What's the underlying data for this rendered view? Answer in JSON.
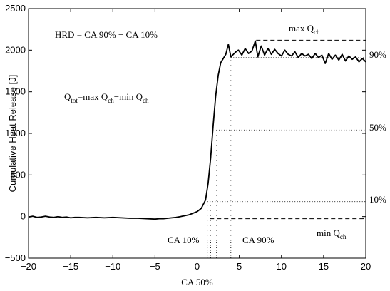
{
  "chart_data": {
    "type": "line",
    "title": "",
    "xlabel": "CA 50%",
    "ylabel": "Cumulative Heat Release [J]",
    "xlim": [
      -20,
      20
    ],
    "ylim": [
      -500,
      2500
    ],
    "grid": false,
    "legend": "none",
    "xticks": [
      -20,
      -15,
      -10,
      -5,
      0,
      5,
      10,
      15,
      20
    ],
    "xtick_labels": [
      "−20",
      "−15",
      "−10",
      "−5",
      "0",
      "5",
      "10",
      "15",
      "20"
    ],
    "yticks": [
      -500,
      0,
      500,
      1000,
      1500,
      2000,
      2500
    ],
    "ytick_labels": [
      "−500",
      "0",
      "500",
      "1000",
      "1500",
      "2000",
      "2500"
    ],
    "series": [
      {
        "x": [
          -20,
          -19.5,
          -19,
          -18.5,
          -18,
          -17.5,
          -17,
          -16.5,
          -16,
          -15.5,
          -15,
          -14.5,
          -14,
          -13,
          -12,
          -11,
          -10,
          -9,
          -8,
          -7,
          -6,
          -5,
          -4.5,
          -4,
          -3.5,
          -3,
          -2.5,
          -2,
          -1.5,
          -1,
          -0.5,
          0,
          0.5,
          1,
          1.3,
          1.6,
          1.9,
          2.2,
          2.5,
          2.8,
          3.1,
          3.4,
          3.7,
          4.0,
          4.3,
          4.6,
          4.9,
          5.3,
          5.7,
          6.1,
          6.5,
          6.9,
          7.2,
          7.6,
          8.0,
          8.4,
          8.8,
          9.2,
          9.6,
          10.0,
          10.4,
          10.8,
          11.2,
          11.6,
          12.0,
          12.4,
          12.8,
          13.2,
          13.6,
          14.0,
          14.4,
          14.8,
          15.2,
          15.6,
          16.0,
          16.4,
          16.8,
          17.2,
          17.6,
          18.0,
          18.4,
          18.8,
          19.2,
          19.6,
          20.0
        ],
        "y": [
          -5,
          5,
          -10,
          -5,
          5,
          -5,
          -10,
          0,
          -10,
          -5,
          -15,
          -10,
          -10,
          -15,
          -10,
          -15,
          -10,
          -15,
          -20,
          -20,
          -25,
          -30,
          -25,
          -25,
          -20,
          -15,
          -10,
          0,
          10,
          20,
          40,
          60,
          100,
          200,
          400,
          700,
          1100,
          1450,
          1700,
          1850,
          1900,
          1950,
          2070,
          1920,
          1950,
          1980,
          2000,
          1940,
          2020,
          1960,
          1990,
          2110,
          1920,
          2050,
          1940,
          2020,
          1950,
          2010,
          1960,
          1930,
          2000,
          1950,
          1930,
          1980,
          1910,
          1960,
          1930,
          1950,
          1900,
          1960,
          1910,
          1940,
          1840,
          1960,
          1890,
          1940,
          1880,
          1950,
          1870,
          1930,
          1890,
          1920,
          1860,
          1900,
          1860
        ]
      }
    ],
    "reference_lines": [
      {
        "kind": "hline",
        "y": 2120,
        "x_from": 7,
        "x_to": 20,
        "style": "dashed"
      },
      {
        "kind": "hline",
        "y": -25,
        "x_from": 1.5,
        "x_to": 20,
        "style": "dashed"
      },
      {
        "kind": "hline",
        "y": 1910,
        "x_from": 4,
        "x_to": 20,
        "style": "dotted"
      },
      {
        "kind": "hline",
        "y": 1040,
        "x_from": 2.3,
        "x_to": 20,
        "style": "dotted"
      },
      {
        "kind": "hline",
        "y": 180,
        "x_from": 1.2,
        "x_to": 20,
        "style": "dotted"
      },
      {
        "kind": "vline",
        "x": 1.2,
        "y_from": -500,
        "y_to": 180,
        "style": "dotted"
      },
      {
        "kind": "vline",
        "x": 1.6,
        "y_from": -500,
        "y_to": 180,
        "style": "dotted"
      },
      {
        "kind": "vline",
        "x": 2.3,
        "y_from": -500,
        "y_to": 1040,
        "style": "dotted"
      },
      {
        "kind": "vline",
        "x": 4.0,
        "y_from": -500,
        "y_to": 1910,
        "style": "dotted"
      }
    ],
    "annotations": {
      "hrd": "HRD = CA 90% − CA 10%",
      "qtot": {
        "t1": "Q",
        "s1": "tot",
        "t2": "=max Q",
        "s2": "ch",
        "t3": "−min Q",
        "s3": "ch"
      },
      "maxq": {
        "t": "max Q",
        "s": "ch"
      },
      "minq": {
        "t": "min Q",
        "s": "ch"
      },
      "ca10": "CA 10%",
      "ca90": "CA 90%",
      "p90": "90%",
      "p50": "50%",
      "p10": "10%"
    }
  }
}
